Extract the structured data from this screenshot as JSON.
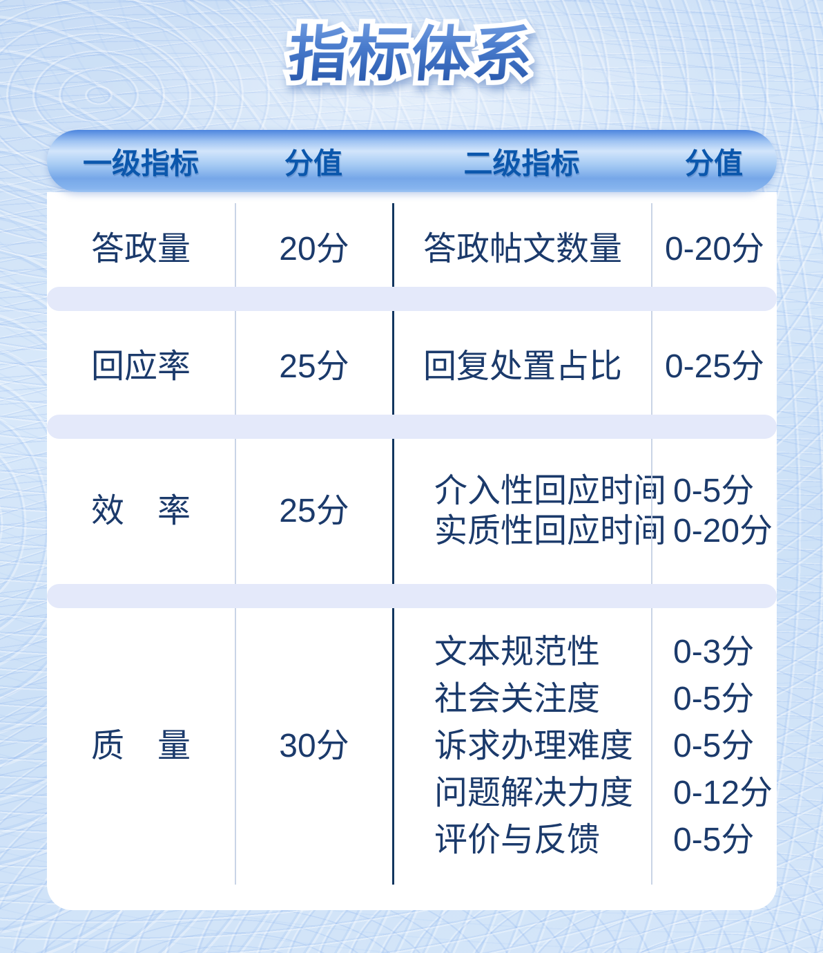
{
  "page": {
    "title": "指标体系"
  },
  "table": {
    "headers": [
      {
        "label": "一级指标"
      },
      {
        "label": "分值"
      },
      {
        "label": "二级指标"
      },
      {
        "label": "分值"
      }
    ],
    "rows": [
      {
        "level1": "答政量",
        "score": "20分",
        "sub": [
          {
            "name": "答政帖文数量",
            "score": "0-20分"
          }
        ]
      },
      {
        "level1": "回应率",
        "score": "25分",
        "sub": [
          {
            "name": "回复处置占比",
            "score": "0-25分"
          }
        ]
      },
      {
        "level1": "效　率",
        "score": "25分",
        "sub": [
          {
            "name": "介入性回应时间",
            "score": "0-5分"
          },
          {
            "name": "实质性回应时间",
            "score": "0-20分"
          }
        ]
      },
      {
        "level1": "质　量",
        "score": "30分",
        "sub": [
          {
            "name": "文本规范性",
            "score": "0-3分"
          },
          {
            "name": "社会关注度",
            "score": "0-5分"
          },
          {
            "name": "诉求办理难度",
            "score": "0-5分"
          },
          {
            "name": "问题解决力度",
            "score": "0-12分"
          },
          {
            "name": "评价与反馈",
            "score": "0-5分"
          }
        ]
      }
    ]
  },
  "colors": {
    "title_blue": "#1d4da2",
    "header_text": "#0b57ac",
    "body_text": "#1b3a6b",
    "divider_dark": "#12365f",
    "divider_light": "#c9d4e6",
    "separator_pill": "#e4e9fa",
    "body_background": "#ffffff",
    "page_background": "#d5e6f9"
  }
}
